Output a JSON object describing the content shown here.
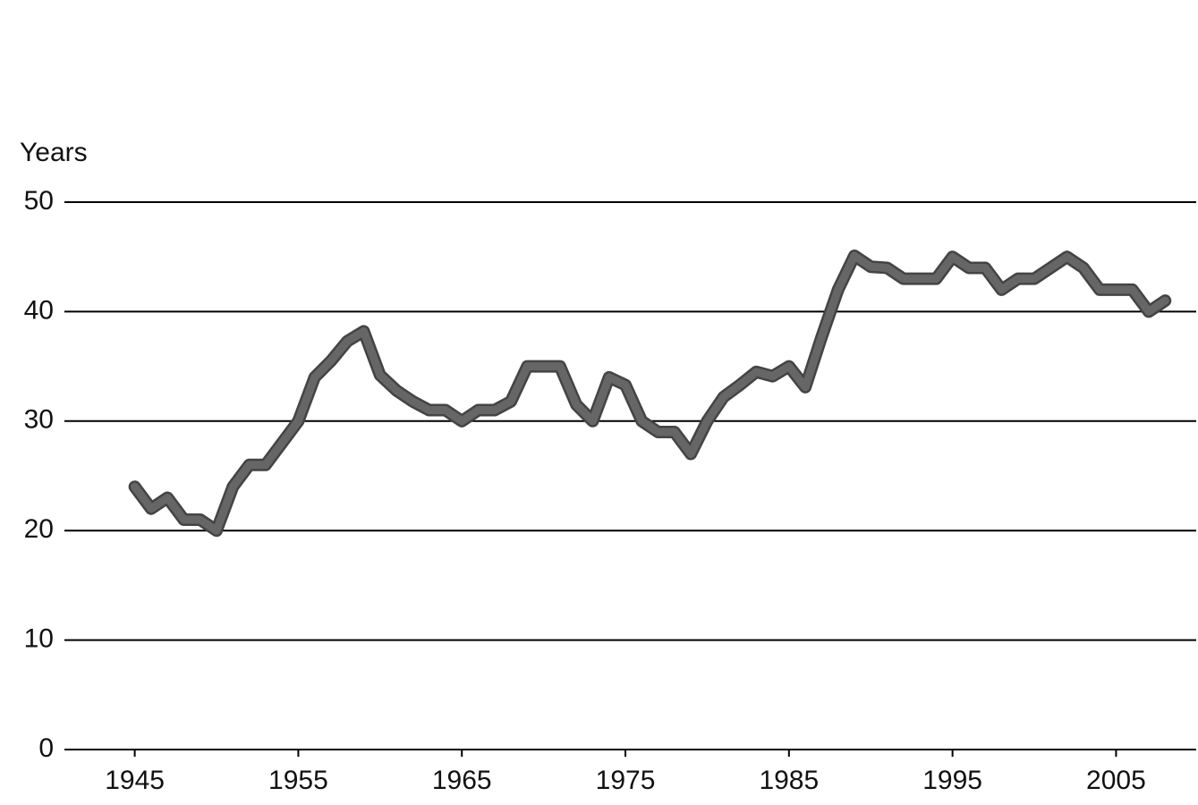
{
  "chart_data": {
    "type": "line",
    "y_label": "Years",
    "x": [
      1945,
      1946,
      1947,
      1948,
      1949,
      1950,
      1951,
      1952,
      1953,
      1954,
      1955,
      1956,
      1957,
      1958,
      1959,
      1960,
      1961,
      1962,
      1963,
      1964,
      1965,
      1966,
      1967,
      1968,
      1969,
      1970,
      1971,
      1972,
      1973,
      1974,
      1975,
      1976,
      1977,
      1978,
      1979,
      1980,
      1981,
      1982,
      1983,
      1984,
      1985,
      1986,
      1987,
      1988,
      1989,
      1990,
      1991,
      1992,
      1993,
      1994,
      1995,
      1996,
      1997,
      1998,
      1999,
      2000,
      2001,
      2002,
      2003,
      2004,
      2005,
      2006,
      2007,
      2008
    ],
    "series": [
      {
        "color": "#666666",
        "values": [
          24,
          22,
          23,
          21,
          21,
          20,
          24,
          26,
          26,
          28,
          30,
          34,
          35.5,
          37.3,
          38.2,
          34.2,
          32.8,
          31.8,
          31,
          31,
          30,
          31,
          31,
          31.8,
          35,
          35,
          35,
          31.5,
          30,
          34,
          33.3,
          30,
          29,
          29,
          27,
          30,
          32.2,
          33.3,
          34.5,
          34.1,
          35,
          33.1,
          37.7,
          42,
          45.1,
          44.1,
          44,
          43,
          43,
          43,
          45,
          44,
          44,
          42,
          43,
          43,
          44,
          45,
          44,
          42,
          42,
          42,
          40,
          41
        ]
      }
    ],
    "xlim": [
      1940.7,
      2009.9
    ],
    "xticks": [
      1945,
      1955,
      1965,
      1975,
      1985,
      1995,
      2005
    ],
    "ylim": [
      0,
      50
    ],
    "yticks": [
      0,
      10,
      20,
      30,
      40,
      50
    ],
    "grid": true
  }
}
